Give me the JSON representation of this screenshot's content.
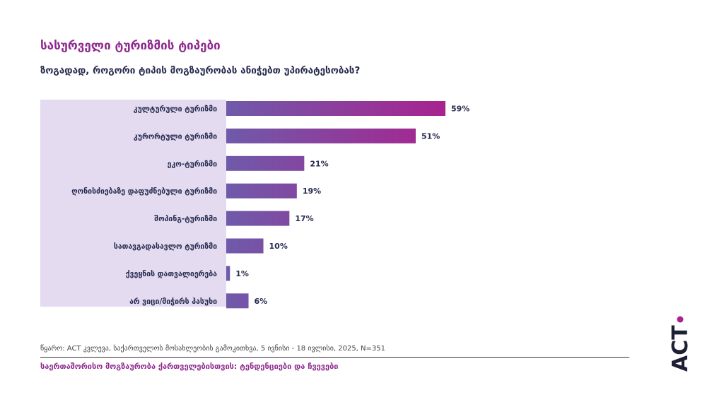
{
  "title": "სასურველი ტურიზმის ტიპები",
  "subtitle": "ზოგადად, როგორი ტიპის მოგზაურობას ანიჭებთ უპირატესობას?",
  "source": "წყარო: ACT კვლევა, საქართველოს მოსახლეობის გამოკითხვა, 5 ივნისი - 18 ივლისი, 2025, N=351",
  "footer": "საერთაშორისო მოგზაურობა ქართველებისთვის: ტენდენციები და ჩვევები",
  "logo_text": "ACT",
  "colors": {
    "title": "#8e2a8e",
    "label_bg": "#e4dbf1",
    "bar_start": "#6f5aaa",
    "bar_end": "#a8238f"
  },
  "chart_data": {
    "type": "bar",
    "orientation": "horizontal",
    "title": "სასურველი ტურიზმის ტიპები",
    "categories": [
      "კულტურული ტურიზმი",
      "კურორტული ტურიზმი",
      "ეკო-ტურიზმი",
      "ღონისძიებაზე დაფუძნებული ტურიზმი",
      "შოპინგ-ტურიზმი",
      "სათავგადასავლო ტურიზმი",
      "ქვეყნის დათვალიერება",
      "არ ვიცი/მიჭირს პასუხი"
    ],
    "values": [
      59,
      51,
      21,
      19,
      17,
      10,
      1,
      6
    ],
    "value_labels": [
      "59%",
      "51%",
      "21%",
      "19%",
      "17%",
      "10%",
      "1%",
      "6%"
    ],
    "xlim": [
      0,
      59
    ],
    "unit": "%"
  }
}
